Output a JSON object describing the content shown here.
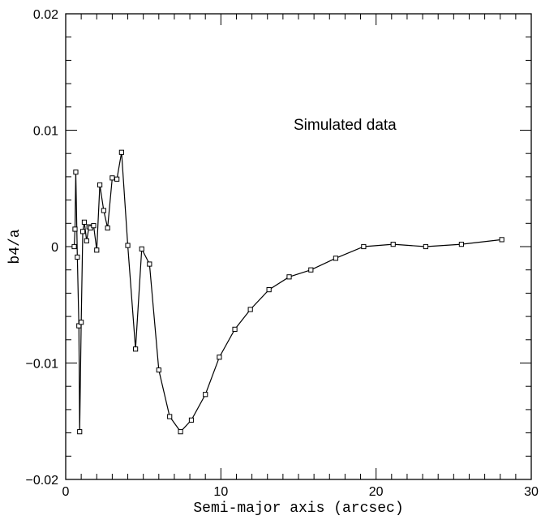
{
  "chart_data": {
    "type": "line",
    "title": "",
    "xlabel": "Semi-major axis (arcsec)",
    "ylabel": "b4/a",
    "xlim": [
      0,
      30
    ],
    "ylim": [
      -0.02,
      0.02
    ],
    "x_ticks": [
      0,
      10,
      20,
      30
    ],
    "x_tick_labels": [
      "0",
      "10",
      "20",
      "30"
    ],
    "y_ticks": [
      -0.02,
      -0.01,
      0,
      0.01,
      0.02
    ],
    "y_tick_labels": [
      "−0.02",
      "−0.01",
      "0",
      "0.01",
      "0.02"
    ],
    "grid": false,
    "annotation": "Simulated data",
    "marker": "square",
    "series": [
      {
        "x": [
          0.55,
          0.6,
          0.65,
          0.75,
          0.85,
          0.9,
          1.0,
          1.1,
          1.2,
          1.35,
          1.5,
          1.6,
          1.8,
          2.0,
          2.2,
          2.45,
          2.7,
          3.0,
          3.3,
          3.6,
          4.0,
          4.5,
          4.9,
          5.4,
          6.0,
          6.7,
          7.4,
          8.1,
          9.0,
          9.9,
          10.9,
          11.9,
          13.1,
          14.4,
          15.8,
          17.4,
          19.2,
          21.1,
          23.2,
          25.5,
          28.1
        ],
        "y": [
          0.0,
          0.0015,
          0.0064,
          -0.0009,
          -0.0068,
          -0.0159,
          -0.0065,
          0.0013,
          0.0021,
          0.0005,
          0.0017,
          0.0016,
          0.0018,
          -0.0003,
          0.0053,
          0.0031,
          0.0016,
          0.0059,
          0.0058,
          0.0081,
          0.0001,
          -0.0088,
          -0.0002,
          -0.0015,
          -0.0106,
          -0.0146,
          -0.0159,
          -0.0149,
          -0.0127,
          -0.0095,
          -0.0071,
          -0.0054,
          -0.0037,
          -0.0026,
          -0.002,
          -0.001,
          0.0,
          0.0002,
          0.0,
          0.0002,
          0.0006
        ]
      }
    ]
  }
}
